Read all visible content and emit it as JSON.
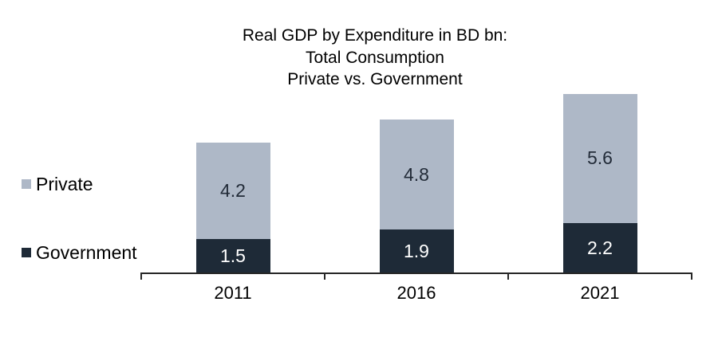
{
  "chart_data": {
    "type": "bar",
    "stacked": true,
    "title_lines": [
      "Real GDP by Expenditure in BD bn:",
      "Total Consumption",
      "Private vs. Government"
    ],
    "categories": [
      "2011",
      "2016",
      "2021"
    ],
    "series": [
      {
        "name": "Government",
        "color": "#1e2a37",
        "label_color": "#ffffff",
        "values": [
          1.5,
          1.9,
          2.2
        ]
      },
      {
        "name": "Private",
        "color": "#aeb8c7",
        "label_color": "#222b38",
        "values": [
          4.2,
          4.8,
          5.6
        ]
      }
    ],
    "legend_position": "left",
    "legend_order": [
      "Private",
      "Government"
    ],
    "value_labels": "centered-in-segment",
    "y_axis_visible": false,
    "gridlines": false,
    "ylim": [
      0,
      8
    ]
  },
  "colors": {
    "background": "#ffffff",
    "axis": "#262626",
    "title_text": "#000000",
    "axis_label_text": "#000000"
  }
}
